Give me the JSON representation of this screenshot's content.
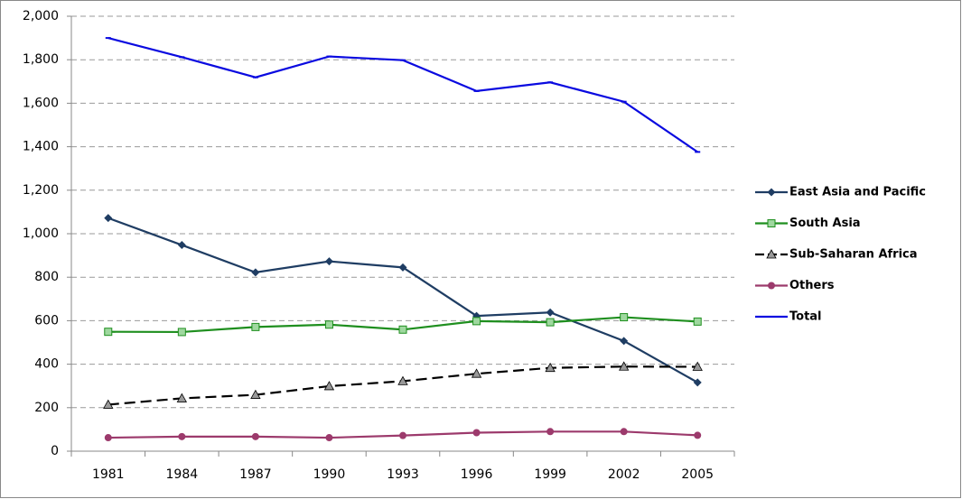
{
  "chart_data": {
    "type": "line",
    "categories": [
      "1981",
      "1984",
      "1987",
      "1990",
      "1993",
      "1996",
      "1999",
      "2002",
      "2005"
    ],
    "series": [
      {
        "name": "East Asia and Pacific",
        "color": "#1f3d63",
        "marker": "diamond",
        "dashed": false,
        "values": [
          1072,
          948,
          822,
          873,
          845,
          622,
          638,
          507,
          316
        ]
      },
      {
        "name": "South Asia",
        "color": "#1f8f1f",
        "marker": "square",
        "dashed": false,
        "values": [
          549,
          548,
          571,
          582,
          559,
          598,
          593,
          616,
          596
        ]
      },
      {
        "name": "Sub-Saharan Africa",
        "color": "#000000",
        "marker": "triangle",
        "dashed": true,
        "values": [
          214,
          243,
          259,
          299,
          322,
          356,
          383,
          389,
          388
        ]
      },
      {
        "name": "Others",
        "color": "#9c3a6c",
        "marker": "circle",
        "dashed": false,
        "values": [
          62,
          67,
          67,
          62,
          72,
          85,
          90,
          90,
          73
        ]
      },
      {
        "name": "Total",
        "color": "#0a0ae0",
        "marker": "dash",
        "dashed": false,
        "values": [
          1900,
          1812,
          1719,
          1815,
          1798,
          1656,
          1696,
          1607,
          1376
        ]
      }
    ],
    "ylim": [
      0,
      2000
    ],
    "yticks": [
      0,
      200,
      400,
      600,
      800,
      {
        "value": 1000,
        "label": "1,000"
      },
      {
        "value": 1200,
        "label": "1,200"
      },
      {
        "value": 1400,
        "label": "1,400"
      },
      {
        "value": 1600,
        "label": "1,600"
      },
      {
        "value": 1800,
        "label": "1,800"
      },
      {
        "value": 2000,
        "label": "2,000"
      }
    ],
    "grid": true,
    "legend": "right"
  }
}
